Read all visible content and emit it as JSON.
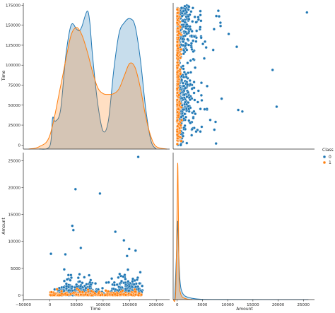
{
  "chart_data": {
    "type": "scatter",
    "kind": "pairplot",
    "variables": [
      "Time",
      "Amount"
    ],
    "axis_labels": {
      "time": "Time",
      "amount": "Amount"
    },
    "ranges": {
      "time": [
        -50000,
        225000
      ],
      "amount": [
        -800,
        26500
      ]
    },
    "ticks": {
      "time": [
        -50000,
        0,
        50000,
        100000,
        150000,
        200000
      ],
      "time_labels": [
        "−50000",
        "0",
        "50000",
        "100000",
        "150000",
        "200000"
      ],
      "amount": [
        0,
        5000,
        10000,
        15000,
        20000,
        25000
      ],
      "amount_labels": [
        "0",
        "5000",
        "10000",
        "15000",
        "20000",
        "25000"
      ],
      "time_y": [
        0,
        25000,
        50000,
        75000,
        100000,
        125000,
        150000,
        175000
      ],
      "time_y_labels": [
        "0",
        "25000",
        "50000",
        "75000",
        "100000",
        "125000",
        "150000",
        "175000"
      ]
    },
    "legend": {
      "title": "Class",
      "placement": "right",
      "entries": [
        {
          "label": "0",
          "color": "#1f77b4"
        },
        {
          "label": "1",
          "color": "#ff7f0e"
        }
      ]
    },
    "series": [
      {
        "name": "0",
        "color": "#1f77b4",
        "time_kde": {
          "x": [
            -20000,
            0,
            5000,
            10000,
            20000,
            30000,
            40000,
            50000,
            55000,
            60000,
            70000,
            75000,
            80000,
            90000,
            100000,
            110000,
            120000,
            130000,
            140000,
            150000,
            160000,
            170000,
            180000,
            190000,
            200000
          ],
          "density": [
            0,
            0.4,
            3.8,
            3.4,
            4.8,
            11.5,
            15.2,
            14.7,
            14.5,
            15.0,
            16.9,
            15.5,
            11.5,
            5.5,
            2.2,
            3.5,
            9.7,
            14.2,
            15.5,
            16.0,
            15.1,
            11.0,
            5.0,
            1.0,
            0
          ]
        },
        "amount_kde": {
          "x": [
            -500,
            0,
            100,
            200,
            300,
            500,
            800,
            1500,
            3000,
            5000,
            10000,
            26000
          ],
          "density": [
            0,
            2500,
            3100,
            2700,
            1900,
            900,
            400,
            150,
            50,
            10,
            2,
            0
          ]
        },
        "outliers": [
          {
            "time": 166000,
            "amount": 25700
          },
          {
            "time": 94000,
            "amount": 18900
          },
          {
            "time": 48000,
            "amount": 19700
          },
          {
            "time": 42000,
            "amount": 12900
          },
          {
            "time": 44000,
            "amount": 12100
          },
          {
            "time": 123000,
            "amount": 11800
          },
          {
            "time": 139000,
            "amount": 10200
          },
          {
            "time": 2000,
            "amount": 7700
          },
          {
            "time": 58000,
            "amount": 8800
          },
          {
            "time": 149000,
            "amount": 8600
          },
          {
            "time": 161000,
            "amount": 8300
          },
          {
            "time": 29000,
            "amount": 7600
          },
          {
            "time": 145000,
            "amount": 7300
          }
        ]
      },
      {
        "name": "1",
        "color": "#ff7f0e",
        "time_kde": {
          "x": [
            -40000,
            -20000,
            0,
            20000,
            30000,
            40000,
            50000,
            60000,
            70000,
            80000,
            90000,
            100000,
            110000,
            120000,
            130000,
            140000,
            150000,
            160000,
            170000,
            180000,
            190000,
            200000,
            220000
          ],
          "density": [
            0,
            0.3,
            1.7,
            7.7,
            11.0,
            14.0,
            14.9,
            14.0,
            12.0,
            9.5,
            7.5,
            6.8,
            6.7,
            6.8,
            7.4,
            9.0,
            10.5,
            10.0,
            7.5,
            4.0,
            1.5,
            0.3,
            0
          ]
        },
        "amount_kde": {
          "x": [
            -800,
            -300,
            0,
            100,
            200,
            300,
            400,
            600,
            1000,
            2000,
            3000
          ],
          "density": [
            0,
            300,
            3900,
            5400,
            4200,
            2000,
            600,
            300,
            100,
            20,
            0
          ]
        }
      }
    ]
  }
}
